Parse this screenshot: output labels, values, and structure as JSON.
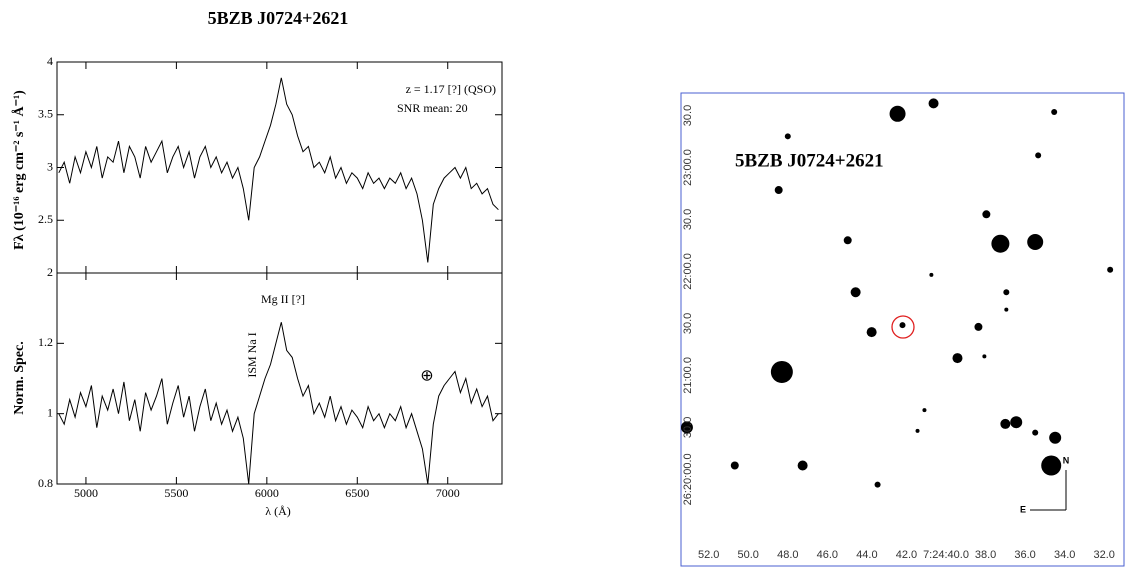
{
  "chart_data": [
    {
      "type": "line",
      "title": "5BZB J0724+2621",
      "ylabel": "Fλ (10⁻¹⁶ erg cm⁻² s⁻¹ Å⁻¹)",
      "annotations": [
        "z = 1.17 [?] (QSO)",
        "SNR mean: 20"
      ],
      "xlim": [
        4840,
        7300
      ],
      "ylim": [
        2,
        4
      ],
      "yticks": [
        2,
        2.5,
        3,
        3.5,
        4
      ],
      "color": "#000000",
      "x": [
        4850,
        4880,
        4910,
        4940,
        4970,
        5000,
        5030,
        5060,
        5090,
        5120,
        5150,
        5180,
        5210,
        5240,
        5270,
        5300,
        5330,
        5360,
        5390,
        5420,
        5450,
        5480,
        5510,
        5540,
        5570,
        5600,
        5630,
        5660,
        5690,
        5720,
        5750,
        5780,
        5810,
        5840,
        5870,
        5900,
        5930,
        5960,
        5990,
        6020,
        6050,
        6080,
        6110,
        6140,
        6170,
        6200,
        6230,
        6260,
        6290,
        6320,
        6350,
        6380,
        6410,
        6440,
        6470,
        6500,
        6530,
        6560,
        6590,
        6620,
        6650,
        6680,
        6710,
        6740,
        6770,
        6800,
        6830,
        6860,
        6890,
        6920,
        6950,
        6980,
        7010,
        7040,
        7070,
        7100,
        7130,
        7160,
        7190,
        7220,
        7250,
        7280
      ],
      "values": [
        2.95,
        3.05,
        2.85,
        3.1,
        2.95,
        3.15,
        3.0,
        3.2,
        2.9,
        3.1,
        3.05,
        3.25,
        2.95,
        3.2,
        3.1,
        2.9,
        3.2,
        3.05,
        3.15,
        3.25,
        2.95,
        3.1,
        3.2,
        3.0,
        3.15,
        2.9,
        3.1,
        3.2,
        3.0,
        3.1,
        2.95,
        3.05,
        2.9,
        3.0,
        2.8,
        2.5,
        3.0,
        3.1,
        3.25,
        3.4,
        3.6,
        3.85,
        3.6,
        3.5,
        3.3,
        3.15,
        3.2,
        3.0,
        3.05,
        2.95,
        3.1,
        2.9,
        3.0,
        2.85,
        2.95,
        2.9,
        2.8,
        2.95,
        2.85,
        2.9,
        2.8,
        2.9,
        2.85,
        2.95,
        2.8,
        2.9,
        2.75,
        2.5,
        2.1,
        2.65,
        2.8,
        2.9,
        2.95,
        3.0,
        2.9,
        3.0,
        2.8,
        2.85,
        2.75,
        2.8,
        2.65,
        2.6
      ]
    },
    {
      "type": "line",
      "ylabel": "Norm. Spec.",
      "xlabel": "λ (Å)",
      "annotations": [
        "Mg II [?]",
        "ISM Na I",
        "⊕"
      ],
      "xlim": [
        4840,
        7300
      ],
      "xticks": [
        5000,
        5500,
        6000,
        6500,
        7000
      ],
      "ylim": [
        0.8,
        1.4
      ],
      "yticks": [
        0.8,
        1,
        1.2
      ],
      "color": "#000000",
      "x": [
        4850,
        4880,
        4910,
        4940,
        4970,
        5000,
        5030,
        5060,
        5090,
        5120,
        5150,
        5180,
        5210,
        5240,
        5270,
        5300,
        5330,
        5360,
        5390,
        5420,
        5450,
        5480,
        5510,
        5540,
        5570,
        5600,
        5630,
        5660,
        5690,
        5720,
        5750,
        5780,
        5810,
        5840,
        5870,
        5900,
        5930,
        5960,
        5990,
        6020,
        6050,
        6080,
        6110,
        6140,
        6170,
        6200,
        6230,
        6260,
        6290,
        6320,
        6350,
        6380,
        6410,
        6440,
        6470,
        6500,
        6530,
        6560,
        6590,
        6620,
        6650,
        6680,
        6710,
        6740,
        6770,
        6800,
        6830,
        6860,
        6890,
        6920,
        6950,
        6980,
        7010,
        7040,
        7070,
        7100,
        7130,
        7160,
        7190,
        7220,
        7250,
        7280
      ],
      "values": [
        1.0,
        0.97,
        1.04,
        0.99,
        1.06,
        1.02,
        1.08,
        0.96,
        1.05,
        1.01,
        1.07,
        1.0,
        1.09,
        0.98,
        1.04,
        0.95,
        1.06,
        1.01,
        1.05,
        1.1,
        0.97,
        1.03,
        1.08,
        0.99,
        1.05,
        0.95,
        1.02,
        1.07,
        0.98,
        1.03,
        0.97,
        1.01,
        0.95,
        0.99,
        0.93,
        0.8,
        1.0,
        1.05,
        1.1,
        1.14,
        1.2,
        1.26,
        1.18,
        1.16,
        1.1,
        1.05,
        1.08,
        1.0,
        1.03,
        0.99,
        1.05,
        0.98,
        1.02,
        0.97,
        1.01,
        0.99,
        0.96,
        1.02,
        0.98,
        1.0,
        0.96,
        1.0,
        0.98,
        1.02,
        0.96,
        1.0,
        0.95,
        0.9,
        0.8,
        0.97,
        1.05,
        1.08,
        1.1,
        1.12,
        1.06,
        1.1,
        1.03,
        1.07,
        1.02,
        1.05,
        0.98,
        1.0
      ]
    },
    {
      "type": "scatter",
      "title": "5BZB J0724+2621",
      "compass": [
        "N",
        "E"
      ],
      "xlim": [
        53.4,
        31.0
      ],
      "ylim": [
        -50,
        223
      ],
      "xticks": [
        {
          "value": 52,
          "label": "52.0"
        },
        {
          "value": 50,
          "label": "50.0"
        },
        {
          "value": 48,
          "label": "48.0"
        },
        {
          "value": 46,
          "label": "46.0"
        },
        {
          "value": 44,
          "label": "44.0"
        },
        {
          "value": 42,
          "label": "42.0"
        },
        {
          "value": 40,
          "label": "7:24:40.0"
        },
        {
          "value": 38,
          "label": "38.0"
        },
        {
          "value": 36,
          "label": "36.0"
        },
        {
          "value": 34,
          "label": "34.0"
        },
        {
          "value": 32,
          "label": "32.0"
        }
      ],
      "yticks": [
        {
          "value": 0,
          "label": "26:20:00.0"
        },
        {
          "value": 30,
          "label": "30.0"
        },
        {
          "value": 60,
          "label": "21:00.0"
        },
        {
          "value": 90,
          "label": "30.0"
        },
        {
          "value": 120,
          "label": "22:00.0"
        },
        {
          "value": 150,
          "label": "30.0"
        },
        {
          "value": 180,
          "label": "23:00.0"
        },
        {
          "value": 210,
          "label": "30.0"
        }
      ],
      "color": "#000000",
      "x": [
        42.45,
        40.63,
        48.0,
        34.53,
        35.34,
        48.46,
        37.96,
        37.25,
        35.49,
        44.97,
        31.7,
        44.57,
        40.74,
        36.95,
        36.95,
        43.76,
        42.2,
        38.36,
        39.42,
        38.06,
        48.3,
        41.09,
        41.44,
        36.45,
        37.0,
        35.49,
        34.48,
        53.1,
        34.68,
        50.68,
        47.25,
        43.46
      ],
      "values": [
        211,
        217,
        198,
        212,
        187,
        167,
        153,
        136,
        137,
        138,
        121,
        108,
        118,
        108,
        98,
        85,
        89,
        88,
        70,
        71,
        62,
        40,
        28,
        33,
        32,
        27,
        24,
        30,
        8,
        8,
        8,
        -3
      ],
      "sizes": [
        8,
        5,
        3,
        3,
        3,
        4,
        4,
        9,
        8,
        4,
        3,
        5,
        2,
        3,
        2,
        5,
        3,
        4,
        5,
        2,
        11,
        2,
        2,
        6,
        5,
        3,
        6,
        6,
        10,
        4,
        5,
        3
      ]
    }
  ]
}
